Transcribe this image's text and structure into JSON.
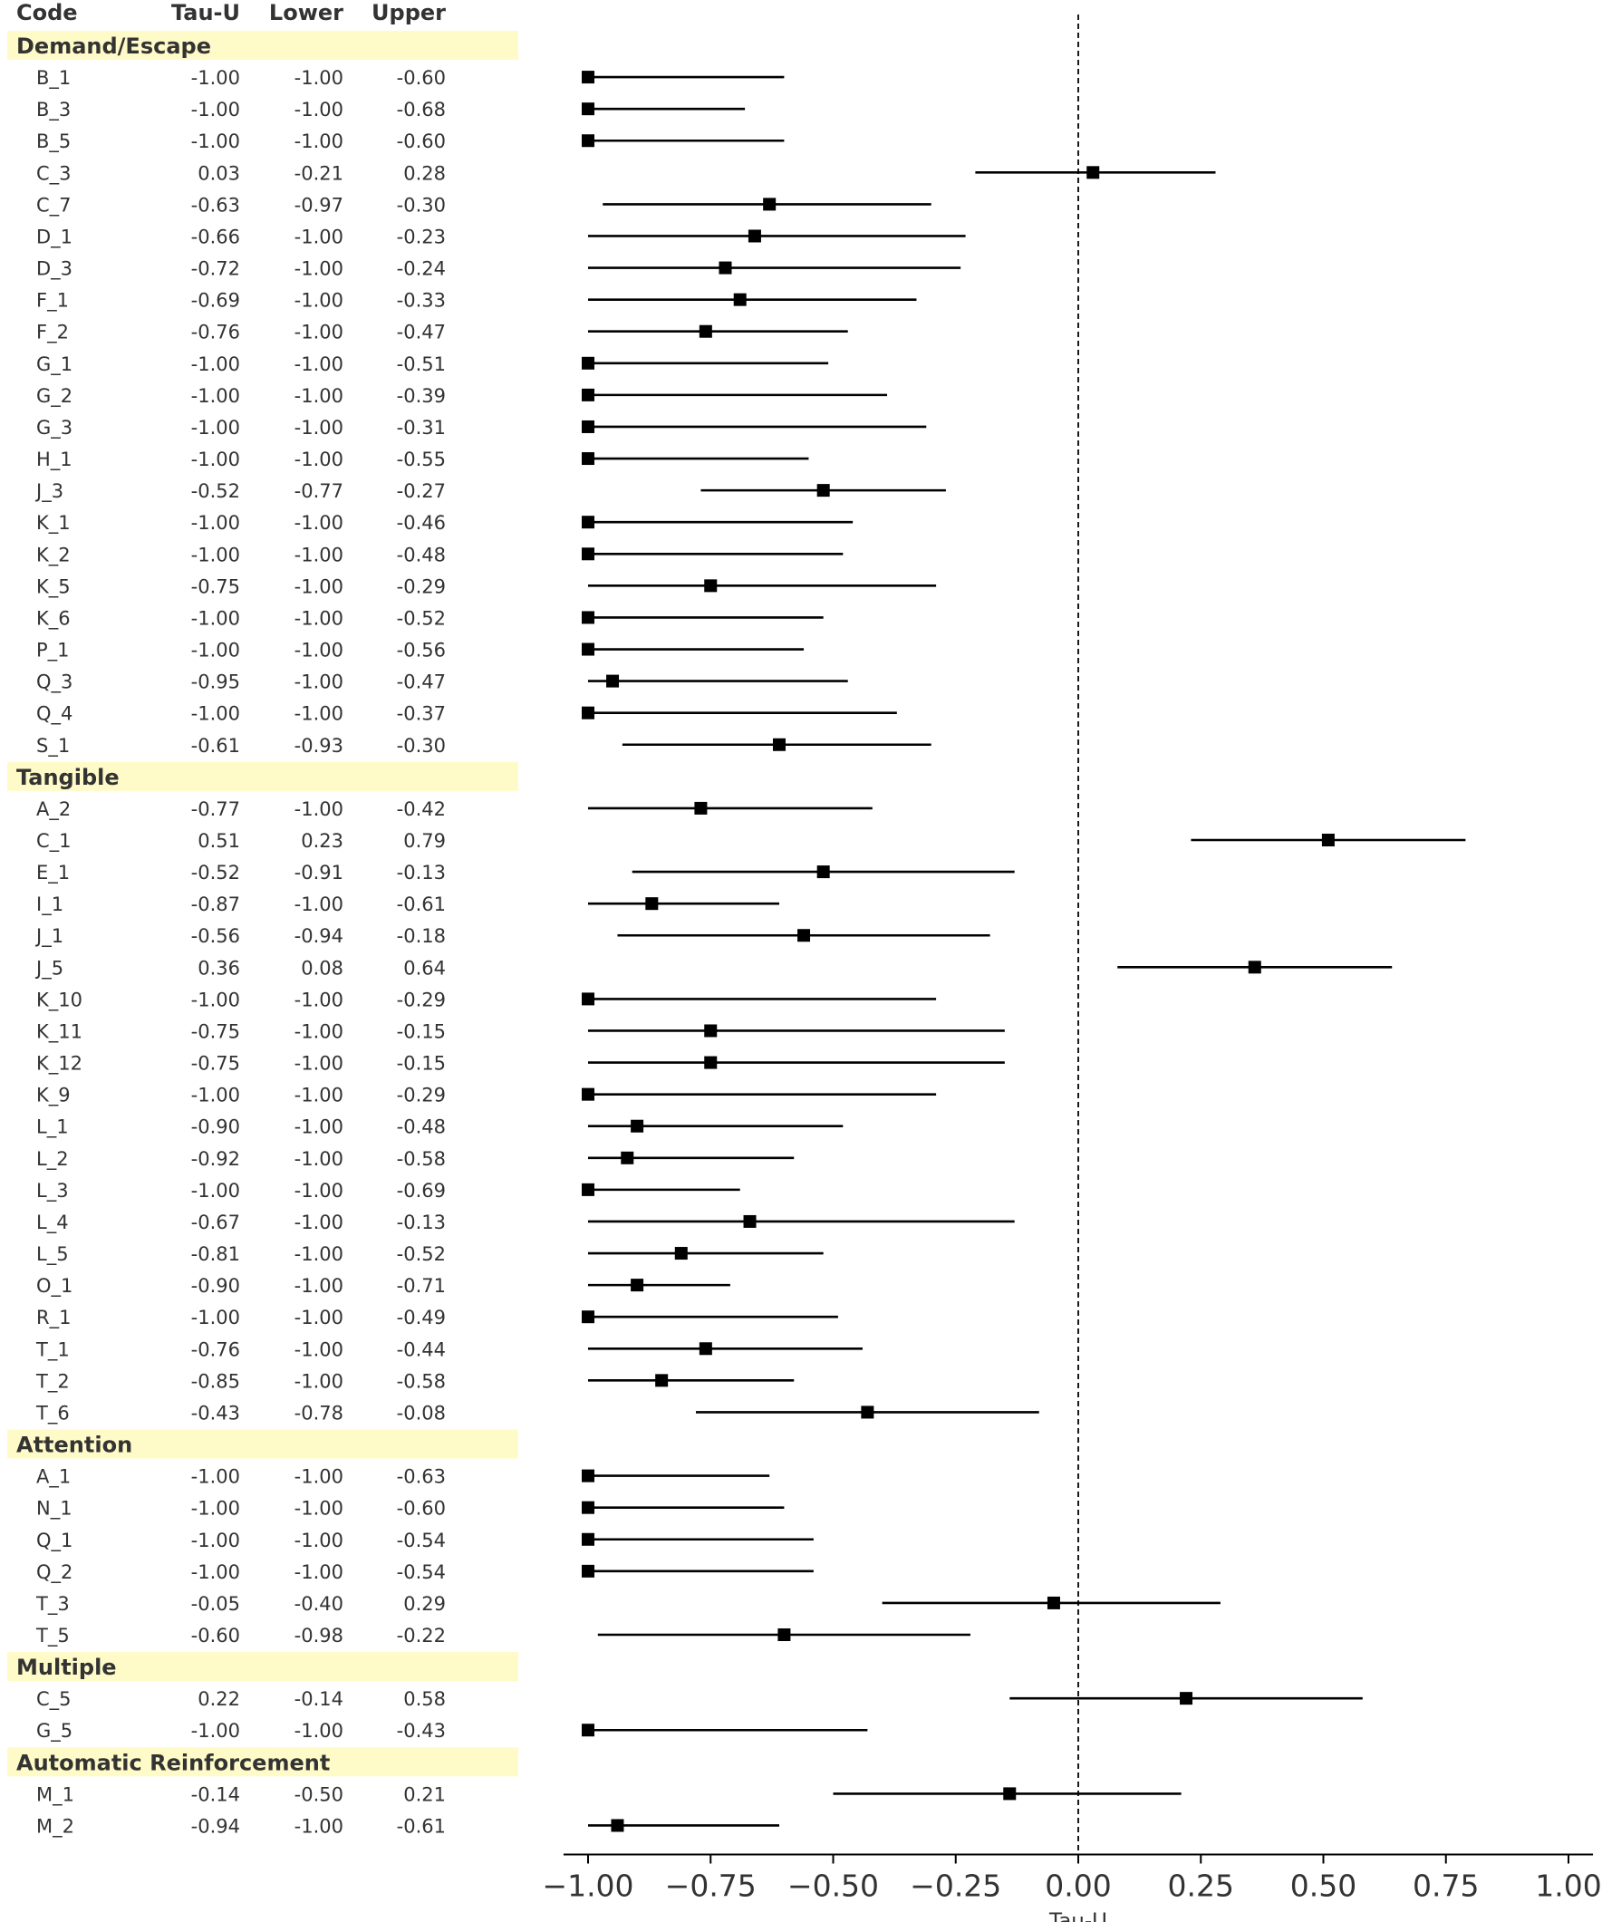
{
  "chart_data": {
    "type": "forest",
    "xlabel": "Tau-U",
    "xlim": [
      -1.05,
      1.05
    ],
    "xticks": [
      -1.0,
      -0.75,
      -0.5,
      -0.25,
      0.0,
      0.25,
      0.5,
      0.75,
      1.0
    ],
    "xtick_labels": [
      "−1.00",
      "−0.75",
      "−0.50",
      "−0.25",
      "0.00",
      "0.25",
      "0.50",
      "0.75",
      "1.00"
    ],
    "reference_line": 0.0,
    "highlight_color": "#fffbc8",
    "marker_color": "#000000",
    "table_headers": [
      "Code",
      "Tau-U",
      "Lower",
      "Upper"
    ],
    "groups": [
      {
        "name": "Demand/Escape",
        "rows": [
          {
            "code": "B_1",
            "tau": "-1.00",
            "lower": "-1.00",
            "upper": "-0.60"
          },
          {
            "code": "B_3",
            "tau": "-1.00",
            "lower": "-1.00",
            "upper": "-0.68"
          },
          {
            "code": "B_5",
            "tau": "-1.00",
            "lower": "-1.00",
            "upper": "-0.60"
          },
          {
            "code": "C_3",
            "tau": "0.03",
            "lower": "-0.21",
            "upper": "0.28"
          },
          {
            "code": "C_7",
            "tau": "-0.63",
            "lower": "-0.97",
            "upper": "-0.30"
          },
          {
            "code": "D_1",
            "tau": "-0.66",
            "lower": "-1.00",
            "upper": "-0.23"
          },
          {
            "code": "D_3",
            "tau": "-0.72",
            "lower": "-1.00",
            "upper": "-0.24"
          },
          {
            "code": "F_1",
            "tau": "-0.69",
            "lower": "-1.00",
            "upper": "-0.33"
          },
          {
            "code": "F_2",
            "tau": "-0.76",
            "lower": "-1.00",
            "upper": "-0.47"
          },
          {
            "code": "G_1",
            "tau": "-1.00",
            "lower": "-1.00",
            "upper": "-0.51"
          },
          {
            "code": "G_2",
            "tau": "-1.00",
            "lower": "-1.00",
            "upper": "-0.39"
          },
          {
            "code": "G_3",
            "tau": "-1.00",
            "lower": "-1.00",
            "upper": "-0.31"
          },
          {
            "code": "H_1",
            "tau": "-1.00",
            "lower": "-1.00",
            "upper": "-0.55"
          },
          {
            "code": "J_3",
            "tau": "-0.52",
            "lower": "-0.77",
            "upper": "-0.27"
          },
          {
            "code": "K_1",
            "tau": "-1.00",
            "lower": "-1.00",
            "upper": "-0.46"
          },
          {
            "code": "K_2",
            "tau": "-1.00",
            "lower": "-1.00",
            "upper": "-0.48"
          },
          {
            "code": "K_5",
            "tau": "-0.75",
            "lower": "-1.00",
            "upper": "-0.29"
          },
          {
            "code": "K_6",
            "tau": "-1.00",
            "lower": "-1.00",
            "upper": "-0.52"
          },
          {
            "code": "P_1",
            "tau": "-1.00",
            "lower": "-1.00",
            "upper": "-0.56"
          },
          {
            "code": "Q_3",
            "tau": "-0.95",
            "lower": "-1.00",
            "upper": "-0.47"
          },
          {
            "code": "Q_4",
            "tau": "-1.00",
            "lower": "-1.00",
            "upper": "-0.37"
          },
          {
            "code": "S_1",
            "tau": "-0.61",
            "lower": "-0.93",
            "upper": "-0.30"
          }
        ]
      },
      {
        "name": "Tangible",
        "rows": [
          {
            "code": "A_2",
            "tau": "-0.77",
            "lower": "-1.00",
            "upper": "-0.42"
          },
          {
            "code": "C_1",
            "tau": "0.51",
            "lower": "0.23",
            "upper": "0.79"
          },
          {
            "code": "E_1",
            "tau": "-0.52",
            "lower": "-0.91",
            "upper": "-0.13"
          },
          {
            "code": "I_1",
            "tau": "-0.87",
            "lower": "-1.00",
            "upper": "-0.61"
          },
          {
            "code": "J_1",
            "tau": "-0.56",
            "lower": "-0.94",
            "upper": "-0.18"
          },
          {
            "code": "J_5",
            "tau": "0.36",
            "lower": "0.08",
            "upper": "0.64"
          },
          {
            "code": "K_10",
            "tau": "-1.00",
            "lower": "-1.00",
            "upper": "-0.29"
          },
          {
            "code": "K_11",
            "tau": "-0.75",
            "lower": "-1.00",
            "upper": "-0.15"
          },
          {
            "code": "K_12",
            "tau": "-0.75",
            "lower": "-1.00",
            "upper": "-0.15"
          },
          {
            "code": "K_9",
            "tau": "-1.00",
            "lower": "-1.00",
            "upper": "-0.29"
          },
          {
            "code": "L_1",
            "tau": "-0.90",
            "lower": "-1.00",
            "upper": "-0.48"
          },
          {
            "code": "L_2",
            "tau": "-0.92",
            "lower": "-1.00",
            "upper": "-0.58"
          },
          {
            "code": "L_3",
            "tau": "-1.00",
            "lower": "-1.00",
            "upper": "-0.69"
          },
          {
            "code": "L_4",
            "tau": "-0.67",
            "lower": "-1.00",
            "upper": "-0.13"
          },
          {
            "code": "L_5",
            "tau": "-0.81",
            "lower": "-1.00",
            "upper": "-0.52"
          },
          {
            "code": "O_1",
            "tau": "-0.90",
            "lower": "-1.00",
            "upper": "-0.71"
          },
          {
            "code": "R_1",
            "tau": "-1.00",
            "lower": "-1.00",
            "upper": "-0.49"
          },
          {
            "code": "T_1",
            "tau": "-0.76",
            "lower": "-1.00",
            "upper": "-0.44"
          },
          {
            "code": "T_2",
            "tau": "-0.85",
            "lower": "-1.00",
            "upper": "-0.58"
          },
          {
            "code": "T_6",
            "tau": "-0.43",
            "lower": "-0.78",
            "upper": "-0.08"
          }
        ]
      },
      {
        "name": "Attention",
        "rows": [
          {
            "code": "A_1",
            "tau": "-1.00",
            "lower": "-1.00",
            "upper": "-0.63"
          },
          {
            "code": "N_1",
            "tau": "-1.00",
            "lower": "-1.00",
            "upper": "-0.60"
          },
          {
            "code": "Q_1",
            "tau": "-1.00",
            "lower": "-1.00",
            "upper": "-0.54"
          },
          {
            "code": "Q_2",
            "tau": "-1.00",
            "lower": "-1.00",
            "upper": "-0.54"
          },
          {
            "code": "T_3",
            "tau": "-0.05",
            "lower": "-0.40",
            "upper": "0.29"
          },
          {
            "code": "T_5",
            "tau": "-0.60",
            "lower": "-0.98",
            "upper": "-0.22"
          }
        ]
      },
      {
        "name": "Multiple",
        "rows": [
          {
            "code": "C_5",
            "tau": "0.22",
            "lower": "-0.14",
            "upper": "0.58"
          },
          {
            "code": "G_5",
            "tau": "-1.00",
            "lower": "-1.00",
            "upper": "-0.43"
          }
        ]
      },
      {
        "name": "Automatic Reinforcement",
        "rows": [
          {
            "code": "M_1",
            "tau": "-0.14",
            "lower": "-0.50",
            "upper": "0.21"
          },
          {
            "code": "M_2",
            "tau": "-0.94",
            "lower": "-1.00",
            "upper": "-0.61"
          }
        ]
      }
    ]
  }
}
